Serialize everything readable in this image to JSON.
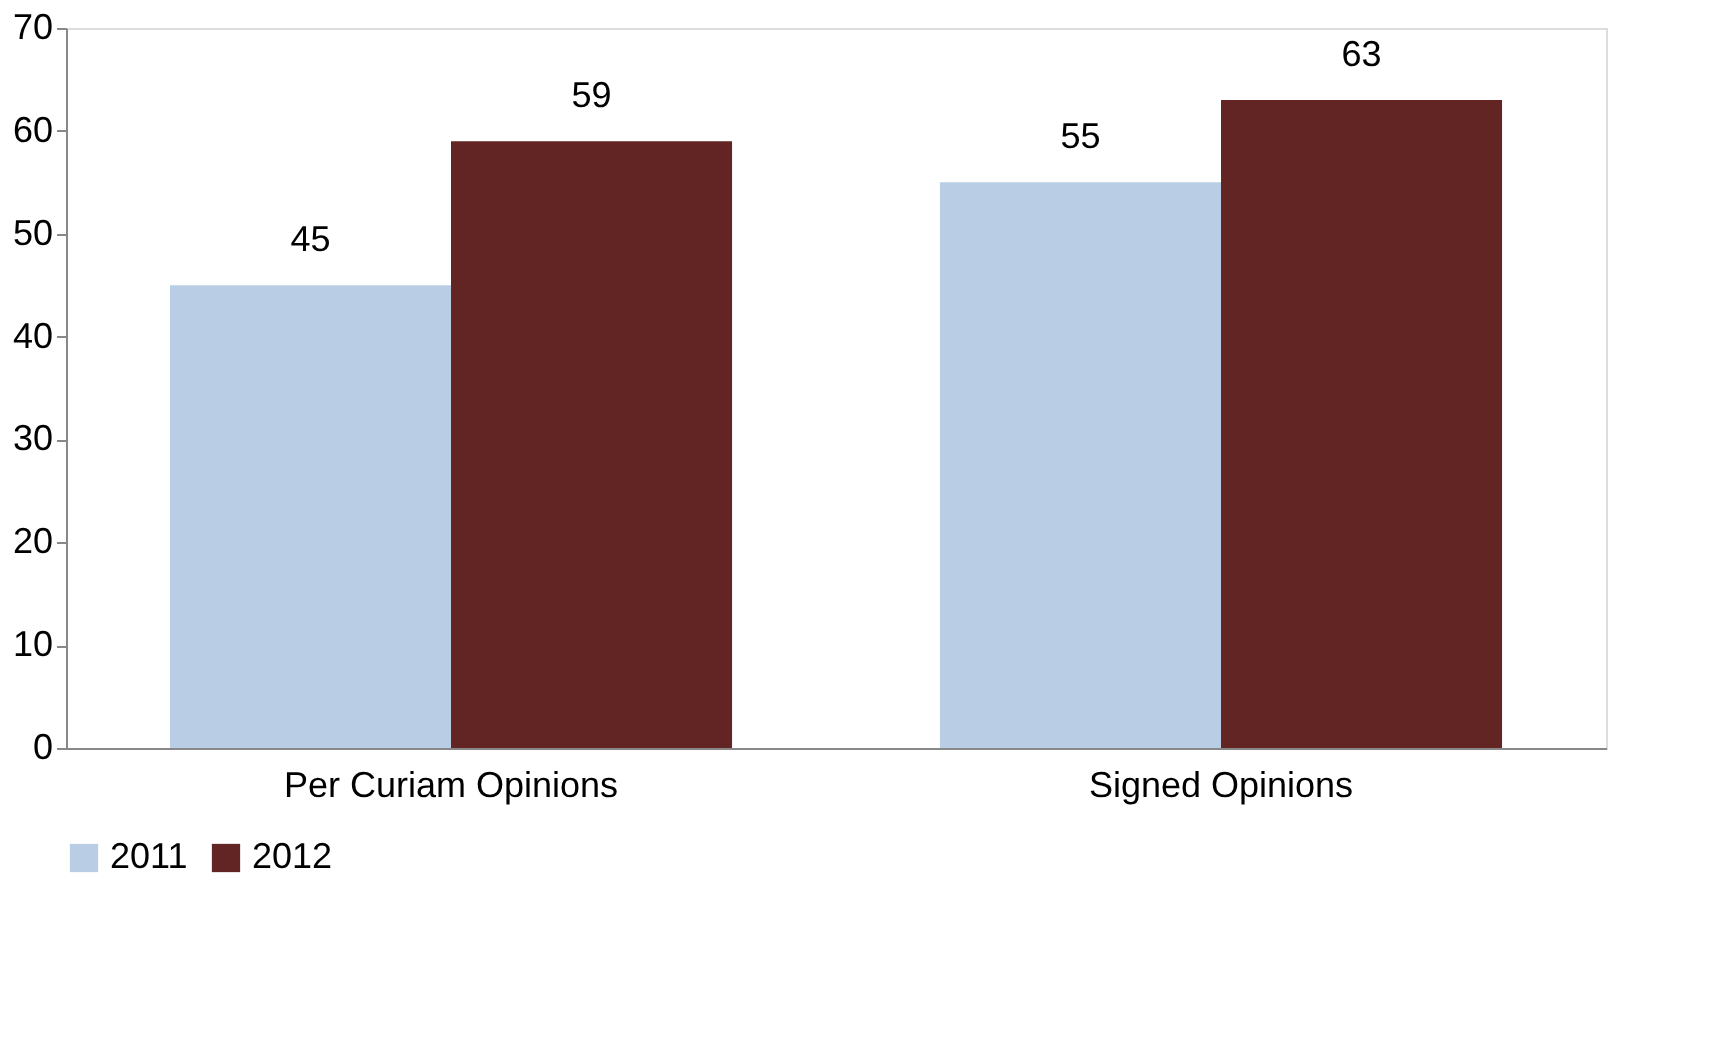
{
  "chart_data": {
    "type": "bar",
    "categories": [
      "Per Curiam Opinions",
      "Signed Opinions"
    ],
    "series": [
      {
        "name": "2011",
        "color": "#b9cde5",
        "values": [
          45,
          55
        ]
      },
      {
        "name": "2012",
        "color": "#632523",
        "values": [
          59,
          63
        ]
      }
    ],
    "ylim": [
      0,
      70
    ],
    "yticks": [
      0,
      10,
      20,
      30,
      40,
      50,
      60,
      70
    ],
    "grid": false,
    "legend": "bottom",
    "data_labels": true
  }
}
